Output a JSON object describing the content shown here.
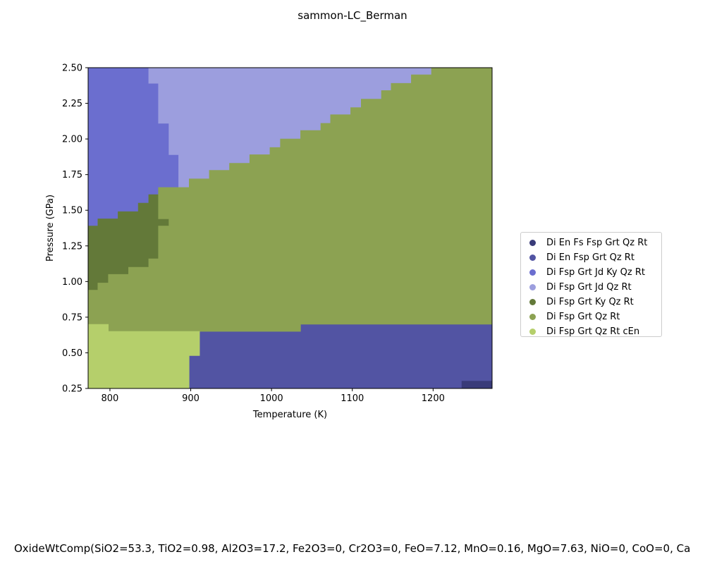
{
  "figure": {
    "title": "sammon-LC_Berman",
    "footer": "OxideWtComp(SiO2=53.3, TiO2=0.98, Al2O3=17.2, Fe2O3=0, Cr2O3=0, FeO=7.12, MnO=0.16, MgO=7.63, NiO=0, CoO=0, Ca"
  },
  "chart_data": {
    "type": "heatmap",
    "title": "sammon-LC_Berman",
    "xlabel": "Temperature (K)",
    "ylabel": "Pressure (GPa)",
    "xlim": [
      773,
      1273
    ],
    "ylim": [
      0.25,
      2.5
    ],
    "xticks": [
      800,
      900,
      1000,
      1100,
      1200
    ],
    "yticks": [
      0.25,
      0.5,
      0.75,
      1.0,
      1.25,
      1.5,
      1.75,
      2.0,
      2.25,
      2.5
    ],
    "xtick_labels": [
      "800",
      "900",
      "1000",
      "1100",
      "1200"
    ],
    "ytick_labels": [
      "0.25",
      "0.50",
      "0.75",
      "1.00",
      "1.25",
      "1.50",
      "1.75",
      "2.00",
      "2.25",
      "2.50"
    ],
    "grid": false,
    "legend_position": "right",
    "phase_fields": [
      {
        "name": "Di En Fs Fsp Grt Qz Rt",
        "color": "#393b79",
        "boundary": [
          [
            1235,
            0.25
          ],
          [
            1273,
            0.25
          ],
          [
            1273,
            0.305
          ],
          [
            1235,
            0.305
          ]
        ]
      },
      {
        "name": "Di En Fsp Grt Qz Rt",
        "color": "#5254a3",
        "boundary": [
          [
            898,
            0.25
          ],
          [
            1235,
            0.25
          ],
          [
            1235,
            0.305
          ],
          [
            1273,
            0.305
          ],
          [
            1273,
            0.7
          ],
          [
            1036,
            0.7
          ],
          [
            1036,
            0.65
          ],
          [
            911,
            0.65
          ],
          [
            911,
            0.48
          ],
          [
            898,
            0.48
          ]
        ]
      },
      {
        "name": "Di Fsp Grt Jd Ky Qz Rt",
        "color": "#6b6ecf",
        "boundary": [
          [
            773,
            2.5
          ],
          [
            848,
            2.5
          ],
          [
            848,
            2.39
          ],
          [
            860,
            2.39
          ],
          [
            860,
            2.11
          ],
          [
            873,
            2.11
          ],
          [
            873,
            1.89
          ],
          [
            885,
            1.89
          ],
          [
            885,
            1.66
          ],
          [
            860,
            1.66
          ],
          [
            860,
            1.61
          ],
          [
            848,
            1.61
          ],
          [
            848,
            1.55
          ],
          [
            835,
            1.55
          ],
          [
            835,
            1.49
          ],
          [
            810,
            1.49
          ],
          [
            810,
            1.44
          ],
          [
            785,
            1.44
          ],
          [
            785,
            1.39
          ],
          [
            773,
            1.39
          ]
        ]
      },
      {
        "name": "Di Fsp Grt Jd Qz Rt",
        "color": "#9c9ede",
        "boundary": [
          [
            848,
            2.5
          ],
          [
            1198,
            2.5
          ],
          [
            1198,
            2.45
          ],
          [
            1173,
            2.45
          ],
          [
            1173,
            2.39
          ],
          [
            1148,
            2.39
          ],
          [
            1148,
            2.34
          ],
          [
            1136,
            2.34
          ],
          [
            1136,
            2.28
          ],
          [
            1111,
            2.28
          ],
          [
            1111,
            2.22
          ],
          [
            1098,
            2.22
          ],
          [
            1098,
            2.17
          ],
          [
            1073,
            2.17
          ],
          [
            1073,
            2.11
          ],
          [
            1061,
            2.11
          ],
          [
            1061,
            2.06
          ],
          [
            1036,
            2.06
          ],
          [
            1036,
            2.0
          ],
          [
            1011,
            2.0
          ],
          [
            1011,
            1.94
          ],
          [
            998,
            1.94
          ],
          [
            998,
            1.89
          ],
          [
            973,
            1.89
          ],
          [
            973,
            1.83
          ],
          [
            948,
            1.83
          ],
          [
            948,
            1.78
          ],
          [
            923,
            1.78
          ],
          [
            923,
            1.72
          ],
          [
            898,
            1.72
          ],
          [
            898,
            1.66
          ],
          [
            885,
            1.66
          ],
          [
            885,
            1.89
          ],
          [
            873,
            1.89
          ],
          [
            873,
            2.11
          ],
          [
            860,
            2.11
          ],
          [
            860,
            2.39
          ],
          [
            848,
            2.39
          ]
        ]
      },
      {
        "name": "Di Fsp Grt Ky Qz Rt",
        "color": "#637939",
        "boundary": [
          [
            773,
            1.39
          ],
          [
            785,
            1.39
          ],
          [
            785,
            1.44
          ],
          [
            810,
            1.44
          ],
          [
            810,
            1.49
          ],
          [
            835,
            1.49
          ],
          [
            835,
            1.55
          ],
          [
            848,
            1.55
          ],
          [
            848,
            1.61
          ],
          [
            860,
            1.61
          ],
          [
            860,
            1.44
          ],
          [
            873,
            1.44
          ],
          [
            873,
            1.39
          ],
          [
            860,
            1.39
          ],
          [
            860,
            1.16
          ],
          [
            848,
            1.16
          ],
          [
            848,
            1.1
          ],
          [
            823,
            1.1
          ],
          [
            823,
            1.05
          ],
          [
            798,
            1.05
          ],
          [
            798,
            0.99
          ],
          [
            785,
            0.99
          ],
          [
            785,
            0.94
          ],
          [
            773,
            0.94
          ]
        ]
      },
      {
        "name": "Di Fsp Grt Qz Rt",
        "color": "#8ca252",
        "boundary": [
          [
            773,
            0.94
          ],
          [
            785,
            0.94
          ],
          [
            785,
            0.99
          ],
          [
            798,
            0.99
          ],
          [
            798,
            1.05
          ],
          [
            823,
            1.05
          ],
          [
            823,
            1.1
          ],
          [
            848,
            1.1
          ],
          [
            848,
            1.16
          ],
          [
            860,
            1.16
          ],
          [
            860,
            1.39
          ],
          [
            873,
            1.39
          ],
          [
            873,
            1.44
          ],
          [
            860,
            1.44
          ],
          [
            860,
            1.61
          ],
          [
            860,
            1.66
          ],
          [
            898,
            1.66
          ],
          [
            898,
            1.72
          ],
          [
            923,
            1.72
          ],
          [
            923,
            1.78
          ],
          [
            948,
            1.78
          ],
          [
            948,
            1.83
          ],
          [
            973,
            1.83
          ],
          [
            973,
            1.89
          ],
          [
            998,
            1.89
          ],
          [
            998,
            1.94
          ],
          [
            1011,
            1.94
          ],
          [
            1011,
            2.0
          ],
          [
            1036,
            2.0
          ],
          [
            1036,
            2.06
          ],
          [
            1061,
            2.06
          ],
          [
            1061,
            2.11
          ],
          [
            1073,
            2.11
          ],
          [
            1073,
            2.17
          ],
          [
            1098,
            2.17
          ],
          [
            1098,
            2.22
          ],
          [
            1111,
            2.22
          ],
          [
            1111,
            2.28
          ],
          [
            1136,
            2.28
          ],
          [
            1136,
            2.34
          ],
          [
            1148,
            2.34
          ],
          [
            1148,
            2.39
          ],
          [
            1173,
            2.39
          ],
          [
            1173,
            2.45
          ],
          [
            1198,
            2.45
          ],
          [
            1198,
            2.5
          ],
          [
            1273,
            2.5
          ],
          [
            1273,
            0.7
          ],
          [
            1036,
            0.7
          ],
          [
            1036,
            0.65
          ],
          [
            798,
            0.65
          ],
          [
            798,
            0.7
          ],
          [
            773,
            0.7
          ]
        ]
      },
      {
        "name": "Di Fsp Grt Qz Rt cEn",
        "color": "#b5cf6b",
        "boundary": [
          [
            773,
            0.25
          ],
          [
            898,
            0.25
          ],
          [
            898,
            0.48
          ],
          [
            911,
            0.48
          ],
          [
            911,
            0.65
          ],
          [
            798,
            0.65
          ],
          [
            798,
            0.7
          ],
          [
            773,
            0.7
          ]
        ]
      }
    ]
  }
}
